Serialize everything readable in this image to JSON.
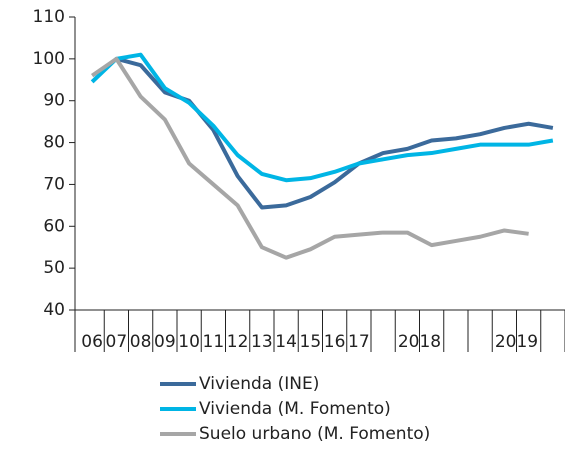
{
  "chart_data": {
    "type": "line",
    "categories": [
      "06",
      "07",
      "08",
      "09",
      "10",
      "11",
      "12",
      "13",
      "14",
      "15",
      "16",
      "17",
      null,
      null,
      null,
      null,
      null,
      null,
      null,
      null
    ],
    "groups": [
      {
        "label": "2018",
        "span": [
          12,
          15
        ]
      },
      {
        "label": "2019",
        "span": [
          16,
          19
        ]
      }
    ],
    "series": [
      {
        "name": "Vivienda (INE)",
        "color": "#3b6a9b",
        "values": [
          null,
          100,
          98.5,
          92,
          90,
          83,
          72,
          64.5,
          65,
          67,
          70.5,
          75,
          77.5,
          78.5,
          80.5,
          81,
          82,
          83.5,
          84.5,
          83.5
        ]
      },
      {
        "name": "Vivienda (M. Fomento)",
        "color": "#00b5e5",
        "values": [
          94.5,
          100,
          101,
          93,
          89.5,
          84,
          77,
          72.5,
          71,
          71.5,
          73,
          75,
          76,
          77,
          77.5,
          78.5,
          79.5,
          79.5,
          79.5,
          80.5
        ]
      },
      {
        "name": "Suelo urbano (M. Fomento)",
        "color": "#a6a6a6",
        "values": [
          96,
          100,
          91,
          85.5,
          75,
          70,
          65,
          55,
          52.5,
          54.5,
          57.5,
          58,
          58.5,
          58.5,
          55.5,
          56.5,
          57.5,
          59,
          58.2,
          null
        ]
      }
    ],
    "ylim": [
      40,
      110
    ],
    "yticks": [
      40,
      50,
      60,
      70,
      80,
      90,
      100,
      110
    ],
    "grid": false,
    "legend": "bottom"
  }
}
